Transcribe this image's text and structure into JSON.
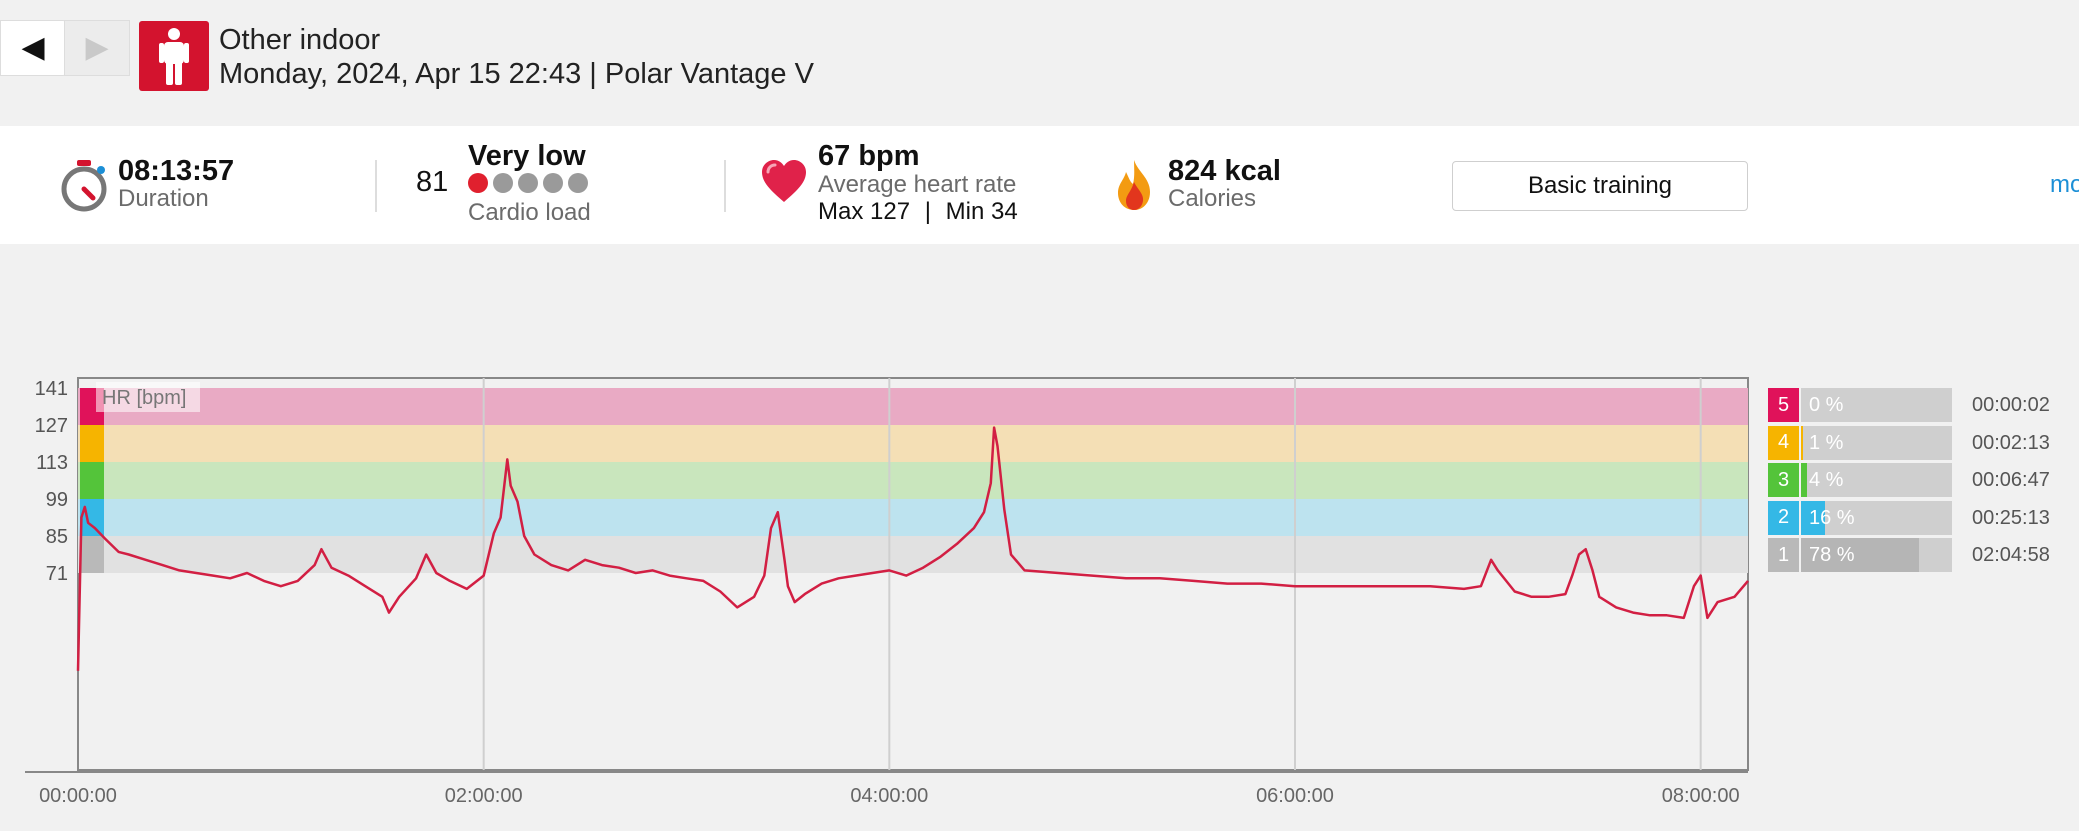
{
  "nav": {
    "prev_icon": "◀",
    "next_icon": "▶"
  },
  "header": {
    "sport_icon": "person-standing-icon",
    "title": "Other indoor",
    "subtitle": "Monday, 2024, Apr 15 22:43 | Polar Vantage V"
  },
  "summary": {
    "duration": {
      "value": "08:13:57",
      "label": "Duration",
      "icon": "stopwatch-icon"
    },
    "cardio": {
      "value": "81",
      "level": "Very low",
      "label": "Cardio load",
      "dots_filled": 1,
      "dots_total": 5,
      "filled_color": "#e0202e",
      "empty_color": "#9a9a9a"
    },
    "heart": {
      "value": "67 bpm",
      "label": "Average heart rate",
      "max_label": "Max 127",
      "divider": "|",
      "min_label": "Min 34",
      "icon": "heart-icon"
    },
    "calories": {
      "value": "824 kcal",
      "label": "Calories",
      "icon": "flame-icon"
    },
    "basic_training_button": "Basic training",
    "more_link": "mo"
  },
  "chart_data": {
    "type": "line",
    "ylabel": "HR [bpm]",
    "y_ticks": [
      "141",
      "127",
      "113",
      "99",
      "85",
      "71"
    ],
    "x_ticks": [
      "00:00:00",
      "02:00:00",
      "04:00:00",
      "06:00:00",
      "08:00:00"
    ],
    "x_range_minutes": [
      0,
      494
    ],
    "y_range_bpm": [
      34,
      141
    ],
    "zones": [
      {
        "zone": "5",
        "from": 127,
        "to": 141,
        "color": "#e9aac4",
        "swatch": "#e0125a"
      },
      {
        "zone": "4",
        "from": 113,
        "to": 127,
        "color": "#f4dfb5",
        "swatch": "#f6b400"
      },
      {
        "zone": "3",
        "from": 99,
        "to": 113,
        "color": "#c9e6bd",
        "swatch": "#54c43a"
      },
      {
        "zone": "2",
        "from": 85,
        "to": 99,
        "color": "#bde3ef",
        "swatch": "#34b8e6"
      },
      {
        "zone": "1",
        "from": 71,
        "to": 85,
        "color": "#e1e1e1",
        "swatch": "#b9b9b9"
      }
    ],
    "series": [
      {
        "color": "#d21f43",
        "points": [
          [
            0,
            34
          ],
          [
            1,
            92
          ],
          [
            2,
            96
          ],
          [
            3,
            90
          ],
          [
            5,
            88
          ],
          [
            8,
            84
          ],
          [
            12,
            79
          ],
          [
            15,
            78
          ],
          [
            20,
            76
          ],
          [
            25,
            74
          ],
          [
            30,
            72
          ],
          [
            35,
            71
          ],
          [
            40,
            70
          ],
          [
            45,
            69
          ],
          [
            50,
            71
          ],
          [
            55,
            68
          ],
          [
            60,
            66
          ],
          [
            65,
            68
          ],
          [
            70,
            74
          ],
          [
            72,
            80
          ],
          [
            75,
            73
          ],
          [
            80,
            70
          ],
          [
            85,
            66
          ],
          [
            90,
            62
          ],
          [
            92,
            56
          ],
          [
            95,
            62
          ],
          [
            100,
            69
          ],
          [
            103,
            78
          ],
          [
            106,
            71
          ],
          [
            110,
            68
          ],
          [
            115,
            65
          ],
          [
            120,
            70
          ],
          [
            123,
            86
          ],
          [
            125,
            92
          ],
          [
            127,
            114
          ],
          [
            128,
            104
          ],
          [
            130,
            98
          ],
          [
            132,
            85
          ],
          [
            135,
            78
          ],
          [
            140,
            74
          ],
          [
            145,
            72
          ],
          [
            150,
            76
          ],
          [
            155,
            74
          ],
          [
            160,
            73
          ],
          [
            165,
            71
          ],
          [
            170,
            72
          ],
          [
            175,
            70
          ],
          [
            180,
            69
          ],
          [
            185,
            68
          ],
          [
            190,
            64
          ],
          [
            195,
            58
          ],
          [
            200,
            62
          ],
          [
            203,
            70
          ],
          [
            205,
            88
          ],
          [
            207,
            94
          ],
          [
            209,
            76
          ],
          [
            210,
            66
          ],
          [
            212,
            60
          ],
          [
            215,
            63
          ],
          [
            220,
            67
          ],
          [
            225,
            69
          ],
          [
            230,
            70
          ],
          [
            235,
            71
          ],
          [
            240,
            72
          ],
          [
            245,
            70
          ],
          [
            250,
            73
          ],
          [
            255,
            77
          ],
          [
            260,
            82
          ],
          [
            265,
            88
          ],
          [
            268,
            94
          ],
          [
            270,
            105
          ],
          [
            271,
            126
          ],
          [
            272,
            119
          ],
          [
            274,
            95
          ],
          [
            276,
            78
          ],
          [
            280,
            72
          ],
          [
            290,
            71
          ],
          [
            300,
            70
          ],
          [
            310,
            69
          ],
          [
            320,
            69
          ],
          [
            330,
            68
          ],
          [
            340,
            67
          ],
          [
            350,
            67
          ],
          [
            360,
            66
          ],
          [
            370,
            66
          ],
          [
            380,
            66
          ],
          [
            390,
            66
          ],
          [
            400,
            66
          ],
          [
            410,
            65
          ],
          [
            415,
            66
          ],
          [
            418,
            76
          ],
          [
            420,
            72
          ],
          [
            425,
            64
          ],
          [
            430,
            62
          ],
          [
            435,
            62
          ],
          [
            440,
            63
          ],
          [
            442,
            70
          ],
          [
            444,
            78
          ],
          [
            446,
            80
          ],
          [
            448,
            72
          ],
          [
            450,
            62
          ],
          [
            455,
            58
          ],
          [
            460,
            56
          ],
          [
            465,
            55
          ],
          [
            470,
            55
          ],
          [
            475,
            54
          ],
          [
            478,
            66
          ],
          [
            480,
            70
          ],
          [
            482,
            54
          ],
          [
            485,
            60
          ],
          [
            490,
            62
          ],
          [
            494,
            68
          ]
        ]
      }
    ],
    "zone_summary": [
      {
        "zone": "5",
        "percent": "0 %",
        "fill": 0,
        "time": "00:00:02"
      },
      {
        "zone": "4",
        "percent": "1 %",
        "fill": 0.01,
        "time": "00:02:13"
      },
      {
        "zone": "3",
        "percent": "4 %",
        "fill": 0.04,
        "time": "00:06:47"
      },
      {
        "zone": "2",
        "percent": "16 %",
        "fill": 0.16,
        "time": "00:25:13"
      },
      {
        "zone": "1",
        "percent": "78 %",
        "fill": 0.78,
        "time": "02:04:58"
      }
    ]
  }
}
